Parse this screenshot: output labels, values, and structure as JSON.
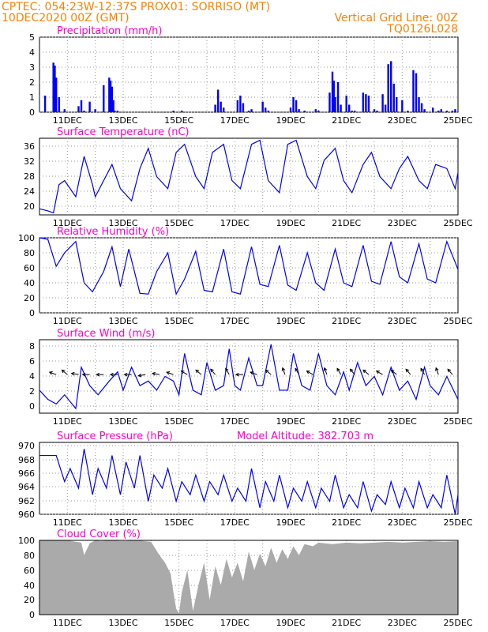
{
  "header": {
    "left_line1": "CPTEC:   054:23W-12:37S   PROX01: SORRISO (MT)",
    "left_line2": "10DEC2020 00Z (GMT)",
    "right_line2": "Vertical Grid Line: 00Z",
    "right_line3": "TQ0126L028"
  },
  "colors": {
    "header": "#ff8000",
    "title": "#ff00cc",
    "series": "#0000ff",
    "cloud": "#aaaaaa"
  },
  "x_axis": {
    "labels": [
      "11DEC",
      "13DEC",
      "15DEC",
      "17DEC",
      "19DEC",
      "21DEC",
      "23DEC",
      "25DEC"
    ],
    "start": "10DEC2020 00Z",
    "end": "25DEC2020 00Z"
  },
  "panels": {
    "precip": {
      "title": "Precipitation (mm/h)",
      "yticks": [
        "5",
        "4",
        "3",
        "2",
        "1",
        "0"
      ]
    },
    "temp": {
      "title": "Surface Temperature (nC)",
      "yticks": [
        "36",
        "32",
        "28",
        "24",
        "20"
      ]
    },
    "rh": {
      "title": "Relative Humidity (%)",
      "yticks": [
        "100",
        "80",
        "60",
        "40",
        "20",
        "0"
      ]
    },
    "wind": {
      "title": "Surface Wind (m/s)",
      "yticks": [
        "8",
        "6",
        "4",
        "2",
        "0"
      ]
    },
    "pres": {
      "title": "Surface Pressure (hPa)",
      "subtitle": "Model Altitude: 382.703 m",
      "yticks": [
        "970",
        "968",
        "966",
        "964",
        "962",
        "960"
      ]
    },
    "cloud": {
      "title": "Cloud Cover (%)",
      "yticks": [
        "100",
        "80",
        "60",
        "40",
        "20",
        "0"
      ]
    }
  },
  "chart_data": [
    {
      "type": "bar",
      "title": "Precipitation (mm/h)",
      "ylim": [
        0,
        5
      ],
      "grid": true,
      "x": [
        10.2,
        10.5,
        10.55,
        10.6,
        10.7,
        10.9,
        11.4,
        11.5,
        11.6,
        11.8,
        12.0,
        12.3,
        12.5,
        12.55,
        12.6,
        12.65,
        12.7,
        12.8,
        14.8,
        15.1,
        16.3,
        16.4,
        16.5,
        16.6,
        17.1,
        17.2,
        17.3,
        17.5,
        17.6,
        18.0,
        18.1,
        18.2,
        19.0,
        19.1,
        19.2,
        19.3,
        19.5,
        19.9,
        20.0,
        20.4,
        20.5,
        20.55,
        20.6,
        20.7,
        20.8,
        21.0,
        21.1,
        21.2,
        21.3,
        21.6,
        21.7,
        21.8,
        22.0,
        22.1,
        22.3,
        22.4,
        22.5,
        22.6,
        22.7,
        22.8,
        23.0,
        23.2,
        23.4,
        23.5,
        23.6,
        23.7,
        23.8,
        24.1,
        24.3,
        24.4,
        24.6,
        24.8,
        24.9
      ],
      "values": [
        1.1,
        3.3,
        3.1,
        2.3,
        1.0,
        0.2,
        0.4,
        0.8,
        0.1,
        0.7,
        0.2,
        1.8,
        2.3,
        2.1,
        1.7,
        0.8,
        0.1,
        0.1,
        0.1,
        0.1,
        0.5,
        1.5,
        0.7,
        0.3,
        0.8,
        1.1,
        0.6,
        0.1,
        0.2,
        0.7,
        0.3,
        0.1,
        0.3,
        1.0,
        0.8,
        0.2,
        0.1,
        0.2,
        0.1,
        1.3,
        2.7,
        2.1,
        1.0,
        2.0,
        0.5,
        1.1,
        0.5,
        0.1,
        0.1,
        1.3,
        1.2,
        1.1,
        0.2,
        0.1,
        1.2,
        0.5,
        3.2,
        3.4,
        1.9,
        1.0,
        0.8,
        0.1,
        2.8,
        2.6,
        1.0,
        0.6,
        0.2,
        0.3,
        0.1,
        0.2,
        0.1,
        0.1,
        0.2
      ]
    },
    {
      "type": "line",
      "title": "Surface Temperature (nC)",
      "ylim": [
        18.5,
        37.5
      ],
      "grid": true,
      "x": [
        10.0,
        10.3,
        10.5,
        10.7,
        10.9,
        11.3,
        11.6,
        11.9,
        12.0,
        12.3,
        12.6,
        12.9,
        13.3,
        13.6,
        13.9,
        14.2,
        14.6,
        14.9,
        15.2,
        15.6,
        15.9,
        16.2,
        16.6,
        16.9,
        17.2,
        17.6,
        17.9,
        18.2,
        18.6,
        18.9,
        19.2,
        19.6,
        19.9,
        20.2,
        20.6,
        20.9,
        21.2,
        21.6,
        21.9,
        22.2,
        22.6,
        22.9,
        23.2,
        23.6,
        23.9,
        24.2,
        24.6,
        24.9,
        25.0
      ],
      "values": [
        20,
        19.5,
        19,
        26,
        27,
        23,
        33,
        26,
        23,
        27,
        31,
        25,
        22,
        30,
        35,
        28,
        25,
        34,
        36,
        28,
        25,
        34,
        36,
        27,
        25,
        36,
        37,
        27,
        24,
        36,
        37,
        28,
        25,
        32,
        35,
        27,
        24,
        31,
        34,
        28,
        25,
        30,
        33,
        27,
        25,
        31,
        30,
        25,
        29
      ]
    },
    {
      "type": "line",
      "title": "Relative Humidity (%)",
      "ylim": [
        0,
        100
      ],
      "grid": true,
      "x": [
        10.0,
        10.3,
        10.6,
        10.9,
        11.3,
        11.6,
        11.9,
        12.3,
        12.6,
        12.9,
        13.2,
        13.6,
        13.9,
        14.2,
        14.6,
        14.9,
        15.2,
        15.6,
        15.9,
        16.2,
        16.6,
        16.9,
        17.2,
        17.6,
        17.9,
        18.2,
        18.6,
        18.9,
        19.2,
        19.6,
        19.9,
        20.2,
        20.6,
        20.9,
        21.2,
        21.6,
        21.9,
        22.2,
        22.6,
        22.9,
        23.2,
        23.6,
        23.9,
        24.2,
        24.6,
        25.0
      ],
      "values": [
        100,
        98,
        62,
        80,
        95,
        40,
        28,
        55,
        88,
        35,
        85,
        26,
        25,
        55,
        80,
        25,
        45,
        82,
        30,
        28,
        85,
        28,
        25,
        88,
        38,
        35,
        90,
        37,
        30,
        80,
        40,
        30,
        85,
        40,
        35,
        90,
        42,
        38,
        95,
        48,
        40,
        92,
        45,
        40,
        95,
        58
      ]
    },
    {
      "type": "line",
      "title": "Surface Wind (m/s)",
      "ylim": [
        0,
        8
      ],
      "grid": true,
      "x": [
        10.0,
        10.3,
        10.6,
        10.9,
        11.3,
        11.5,
        11.8,
        12.1,
        12.5,
        12.8,
        13.0,
        13.3,
        13.6,
        13.9,
        14.2,
        14.5,
        14.8,
        15.0,
        15.2,
        15.5,
        15.8,
        16.0,
        16.3,
        16.6,
        16.8,
        17.0,
        17.2,
        17.5,
        17.8,
        18.0,
        18.3,
        18.6,
        18.9,
        19.1,
        19.4,
        19.7,
        20.0,
        20.3,
        20.6,
        20.9,
        21.1,
        21.4,
        21.7,
        22.0,
        22.3,
        22.6,
        22.9,
        23.2,
        23.5,
        23.8,
        24.0,
        24.3,
        24.6,
        25.0
      ],
      "values": [
        2.5,
        1.5,
        1.0,
        2.0,
        0.5,
        5.0,
        3.0,
        2.0,
        3.5,
        4.5,
        2.5,
        5.0,
        3.0,
        3.5,
        2.5,
        4.0,
        3.5,
        2.0,
        6.5,
        2.5,
        2.0,
        5.5,
        2.5,
        3.0,
        7.0,
        3.0,
        2.5,
        6.0,
        3.0,
        3.0,
        7.5,
        2.5,
        2.5,
        6.5,
        3.0,
        2.5,
        6.5,
        3.0,
        2.0,
        4.5,
        2.5,
        5.5,
        3.0,
        4.0,
        2.0,
        5.0,
        2.5,
        3.5,
        1.5,
        5.0,
        3.0,
        2.0,
        4.0,
        1.5
      ],
      "arrows_x": [
        10.6,
        11.0,
        11.4,
        11.8,
        12.3,
        12.8,
        13.3,
        13.8,
        14.3,
        14.8,
        15.3,
        15.8,
        16.3,
        16.8,
        17.3,
        17.8,
        18.3,
        18.8,
        19.3,
        19.8,
        20.3,
        20.8,
        21.3,
        21.8,
        22.3,
        22.8,
        23.3,
        23.8,
        24.3,
        24.8
      ],
      "arrows_deg": [
        200,
        220,
        190,
        180,
        180,
        180,
        180,
        170,
        190,
        200,
        210,
        220,
        230,
        240,
        180,
        200,
        220,
        250,
        240,
        210,
        250,
        240,
        230,
        220,
        210,
        220,
        230,
        240,
        250,
        230
      ]
    },
    {
      "type": "line",
      "title": "Surface Pressure (hPa)",
      "ylim": [
        960,
        971
      ],
      "grid": true,
      "x": [
        10.0,
        10.2,
        10.4,
        10.6,
        10.9,
        11.1,
        11.4,
        11.6,
        11.9,
        12.1,
        12.4,
        12.6,
        12.9,
        13.1,
        13.4,
        13.6,
        13.9,
        14.1,
        14.4,
        14.6,
        14.9,
        15.1,
        15.4,
        15.6,
        15.9,
        16.1,
        16.4,
        16.6,
        16.9,
        17.1,
        17.4,
        17.6,
        17.9,
        18.1,
        18.4,
        18.6,
        18.9,
        19.1,
        19.4,
        19.6,
        19.9,
        20.1,
        20.4,
        20.6,
        20.9,
        21.1,
        21.4,
        21.6,
        21.9,
        22.1,
        22.4,
        22.6,
        22.9,
        23.1,
        23.4,
        23.6,
        23.9,
        24.1,
        24.4,
        24.6,
        24.9,
        25.0
      ],
      "values": [
        969,
        969,
        969,
        969,
        965,
        967,
        964,
        970,
        963,
        967,
        964,
        969,
        963,
        968,
        964,
        969,
        962,
        966,
        964,
        967,
        962,
        965,
        963,
        966,
        962,
        965,
        963,
        966,
        962,
        964,
        962,
        967,
        961,
        965,
        962,
        966,
        961,
        964,
        962,
        965,
        961,
        964,
        962,
        966,
        961,
        963,
        961,
        965,
        960.5,
        963,
        961.5,
        965,
        961,
        964,
        961,
        965,
        961,
        963,
        961,
        966,
        960,
        963
      ]
    },
    {
      "type": "area",
      "title": "Cloud Cover (%)",
      "ylim": [
        0,
        100
      ],
      "grid": true,
      "x": [
        10.0,
        10.5,
        11.0,
        11.5,
        11.6,
        11.8,
        12.0,
        12.2,
        12.5,
        13.0,
        13.5,
        14.0,
        14.3,
        14.5,
        14.7,
        14.8,
        14.9,
        15.0,
        15.1,
        15.3,
        15.5,
        15.7,
        15.9,
        16.1,
        16.3,
        16.5,
        16.7,
        16.9,
        17.1,
        17.3,
        17.5,
        17.7,
        17.9,
        18.1,
        18.3,
        18.5,
        18.7,
        18.9,
        19.1,
        19.3,
        19.5,
        19.8,
        20.0,
        20.5,
        21.0,
        21.5,
        22.0,
        22.5,
        23.0,
        23.5,
        24.0,
        24.5,
        25.0
      ],
      "values": [
        100,
        100,
        100,
        97,
        80,
        96,
        100,
        99,
        100,
        99,
        100,
        98,
        80,
        70,
        55,
        30,
        8,
        2,
        30,
        60,
        5,
        40,
        70,
        20,
        65,
        40,
        75,
        50,
        70,
        45,
        85,
        60,
        82,
        65,
        90,
        70,
        88,
        75,
        92,
        80,
        95,
        92,
        97,
        95,
        97,
        96,
        97,
        98,
        97,
        98,
        99,
        98,
        99
      ]
    }
  ]
}
